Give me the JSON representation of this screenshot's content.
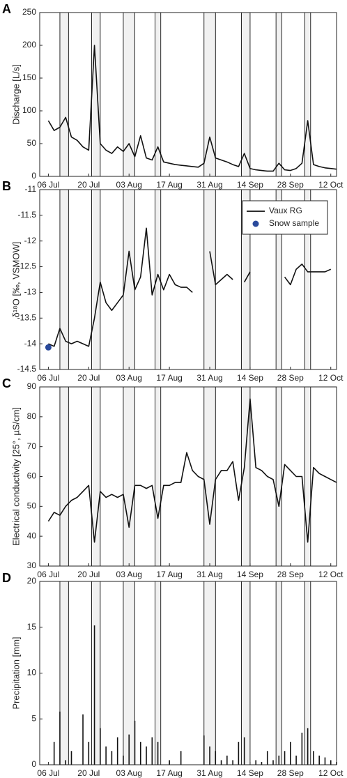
{
  "chart_data": [
    {
      "type": "line",
      "label": "A",
      "ylabel": "Discharge [L/s]",
      "x": [
        "06 Jul",
        "08 Jul",
        "10 Jul",
        "12 Jul",
        "14 Jul",
        "16 Jul",
        "18 Jul",
        "20 Jul",
        "22 Jul",
        "24 Jul",
        "26 Jul",
        "28 Jul",
        "30 Jul",
        "01 Aug",
        "03 Aug",
        "05 Aug",
        "07 Aug",
        "09 Aug",
        "11 Aug",
        "13 Aug",
        "15 Aug",
        "17 Aug",
        "19 Aug",
        "21 Aug",
        "23 Aug",
        "25 Aug",
        "27 Aug",
        "29 Aug",
        "31 Aug",
        "02 Sep",
        "04 Sep",
        "06 Sep",
        "08 Sep",
        "10 Sep",
        "12 Sep",
        "14 Sep",
        "16 Sep",
        "18 Sep",
        "20 Sep",
        "22 Sep",
        "24 Sep",
        "26 Sep",
        "28 Sep",
        "30 Sep",
        "02 Oct",
        "04 Oct",
        "06 Oct",
        "08 Oct",
        "10 Oct",
        "12 Oct",
        "14 Oct"
      ],
      "series": [
        {
          "color": "#111111",
          "values": [
            85,
            70,
            75,
            90,
            60,
            55,
            45,
            40,
            200,
            50,
            40,
            35,
            45,
            38,
            50,
            30,
            62,
            28,
            25,
            45,
            22,
            20,
            18,
            17,
            16,
            15,
            14,
            20,
            60,
            28,
            25,
            22,
            18,
            15,
            35,
            12,
            10,
            9,
            8,
            8,
            20,
            10,
            9,
            12,
            20,
            85,
            18,
            15,
            13,
            12,
            11
          ]
        }
      ],
      "xlim": [
        "03 Jul",
        "14 Oct"
      ],
      "xticks": [
        "06 Jul",
        "20 Jul",
        "03 Aug",
        "17 Aug",
        "31 Aug",
        "14 Sep",
        "28 Sep",
        "12 Oct"
      ],
      "ylim": [
        0,
        250
      ],
      "yticks": [
        0,
        50,
        100,
        150,
        200,
        250
      ],
      "periods": [
        [
          "10 Jul",
          "13 Jul"
        ],
        [
          "21 Jul",
          "24 Jul"
        ],
        [
          "01 Aug",
          "05 Aug"
        ],
        [
          "12 Aug",
          "14 Aug"
        ],
        [
          "29 Aug",
          "02 Sep"
        ],
        [
          "11 Sep",
          "14 Sep"
        ],
        [
          "23 Sep",
          "25 Sep"
        ],
        [
          "03 Oct",
          "05 Oct"
        ]
      ]
    },
    {
      "type": "line",
      "label": "B",
      "ylabel": "δ¹⁸O [‰, VSMOW]",
      "legend": "top-right",
      "x": [
        "06 Jul",
        "08 Jul",
        "10 Jul",
        "12 Jul",
        "14 Jul",
        "16 Jul",
        "18 Jul",
        "20 Jul",
        "22 Jul",
        "24 Jul",
        "26 Jul",
        "28 Jul",
        "30 Jul",
        "01 Aug",
        "03 Aug",
        "05 Aug",
        "07 Aug",
        "09 Aug",
        "11 Aug",
        "13 Aug",
        "15 Aug",
        "17 Aug",
        "19 Aug",
        "21 Aug",
        "23 Aug",
        "25 Aug",
        "27 Aug",
        "29 Aug",
        "31 Aug",
        "02 Sep",
        "04 Sep",
        "06 Sep",
        "08 Sep",
        "10 Sep",
        "12 Sep",
        "14 Sep",
        "16 Sep",
        "18 Sep",
        "20 Sep",
        "22 Sep",
        "24 Sep",
        "26 Sep",
        "28 Sep",
        "30 Sep",
        "02 Oct",
        "04 Oct",
        "06 Oct",
        "08 Oct",
        "10 Oct",
        "12 Oct",
        "14 Oct"
      ],
      "series": [
        {
          "name": "Vaux RG",
          "color": "#111111",
          "values": [
            -14.0,
            -14.05,
            -13.7,
            -13.95,
            -14.0,
            -13.95,
            -14.0,
            -14.05,
            -13.5,
            -12.8,
            -13.2,
            -13.35,
            -13.2,
            -13.05,
            -12.2,
            -12.95,
            -12.7,
            -11.75,
            -13.05,
            -12.65,
            -12.95,
            -12.65,
            -12.85,
            -12.9,
            -12.9,
            -13.0,
            null,
            null,
            -12.2,
            -12.85,
            -12.75,
            -12.65,
            -12.75,
            null,
            -12.8,
            -12.6,
            null,
            null,
            null,
            null,
            null,
            -12.7,
            -12.85,
            -12.55,
            -12.45,
            -12.6,
            -12.6,
            -12.6,
            -12.6,
            -12.55,
            null
          ]
        },
        {
          "name": "Snow sample",
          "type": "scatter",
          "color": "#2a4a9c",
          "x": [
            "06 Jul"
          ],
          "values": [
            -14.07
          ]
        }
      ],
      "xlim": [
        "03 Jul",
        "14 Oct"
      ],
      "xticks": [
        "06 Jul",
        "20 Jul",
        "03 Aug",
        "17 Aug",
        "31 Aug",
        "14 Sep",
        "28 Sep",
        "12 Oct"
      ],
      "ylim": [
        -14.5,
        -11
      ],
      "yticks": [
        -14.5,
        -14,
        -13.5,
        -13,
        -12.5,
        -12,
        -11.5,
        -11
      ],
      "periods": [
        [
          "10 Jul",
          "13 Jul"
        ],
        [
          "21 Jul",
          "24 Jul"
        ],
        [
          "01 Aug",
          "05 Aug"
        ],
        [
          "12 Aug",
          "14 Aug"
        ],
        [
          "29 Aug",
          "02 Sep"
        ],
        [
          "11 Sep",
          "14 Sep"
        ],
        [
          "23 Sep",
          "25 Sep"
        ],
        [
          "03 Oct",
          "05 Oct"
        ]
      ]
    },
    {
      "type": "line",
      "label": "C",
      "ylabel": "Electrical conductivity [25°, µS/cm]",
      "x": [
        "06 Jul",
        "08 Jul",
        "10 Jul",
        "12 Jul",
        "14 Jul",
        "16 Jul",
        "18 Jul",
        "20 Jul",
        "22 Jul",
        "24 Jul",
        "26 Jul",
        "28 Jul",
        "30 Jul",
        "01 Aug",
        "03 Aug",
        "05 Aug",
        "07 Aug",
        "09 Aug",
        "11 Aug",
        "13 Aug",
        "15 Aug",
        "17 Aug",
        "19 Aug",
        "21 Aug",
        "23 Aug",
        "25 Aug",
        "27 Aug",
        "29 Aug",
        "31 Aug",
        "02 Sep",
        "04 Sep",
        "06 Sep",
        "08 Sep",
        "10 Sep",
        "12 Sep",
        "14 Sep",
        "16 Sep",
        "18 Sep",
        "20 Sep",
        "22 Sep",
        "24 Sep",
        "26 Sep",
        "28 Sep",
        "30 Sep",
        "02 Oct",
        "04 Oct",
        "06 Oct",
        "08 Oct",
        "10 Oct",
        "12 Oct",
        "14 Oct"
      ],
      "series": [
        {
          "color": "#111111",
          "values": [
            45,
            48,
            47,
            50,
            52,
            53,
            55,
            57,
            38,
            55,
            53,
            54,
            53,
            54,
            43,
            57,
            57,
            56,
            57,
            46,
            57,
            57,
            58,
            58,
            68,
            62,
            60,
            59,
            44,
            59,
            62,
            62,
            65,
            52,
            63,
            86,
            63,
            62,
            60,
            59,
            50,
            64,
            62,
            60,
            60,
            38,
            63,
            61,
            60,
            59,
            58
          ]
        }
      ],
      "xlim": [
        "03 Jul",
        "14 Oct"
      ],
      "xticks": [
        "06 Jul",
        "20 Jul",
        "03 Aug",
        "17 Aug",
        "31 Aug",
        "14 Sep",
        "28 Sep",
        "12 Oct"
      ],
      "ylim": [
        30,
        90
      ],
      "yticks": [
        30,
        40,
        50,
        60,
        70,
        80,
        90
      ],
      "periods": [
        [
          "10 Jul",
          "13 Jul"
        ],
        [
          "21 Jul",
          "24 Jul"
        ],
        [
          "01 Aug",
          "05 Aug"
        ],
        [
          "12 Aug",
          "14 Aug"
        ],
        [
          "29 Aug",
          "02 Sep"
        ],
        [
          "11 Sep",
          "14 Sep"
        ],
        [
          "23 Sep",
          "25 Sep"
        ],
        [
          "03 Oct",
          "05 Oct"
        ]
      ]
    },
    {
      "type": "bar",
      "label": "D",
      "ylabel": "Precipitation [mm]",
      "x": [
        "06 Jul",
        "08 Jul",
        "10 Jul",
        "12 Jul",
        "14 Jul",
        "16 Jul",
        "18 Jul",
        "20 Jul",
        "22 Jul",
        "24 Jul",
        "26 Jul",
        "28 Jul",
        "30 Jul",
        "01 Aug",
        "03 Aug",
        "05 Aug",
        "07 Aug",
        "09 Aug",
        "11 Aug",
        "13 Aug",
        "15 Aug",
        "17 Aug",
        "19 Aug",
        "21 Aug",
        "23 Aug",
        "25 Aug",
        "27 Aug",
        "29 Aug",
        "31 Aug",
        "02 Sep",
        "04 Sep",
        "06 Sep",
        "08 Sep",
        "10 Sep",
        "12 Sep",
        "14 Sep",
        "16 Sep",
        "18 Sep",
        "20 Sep",
        "22 Sep",
        "24 Sep",
        "26 Sep",
        "28 Sep",
        "30 Sep",
        "02 Oct",
        "04 Oct",
        "06 Oct",
        "08 Oct",
        "10 Oct",
        "12 Oct",
        "14 Oct"
      ],
      "series": [
        {
          "color": "#111111",
          "values": [
            0,
            2.5,
            5.8,
            0.5,
            1.5,
            0,
            5.5,
            2.5,
            15.2,
            4,
            2,
            1.5,
            3,
            1,
            3.3,
            4.8,
            2.5,
            2,
            3,
            2.5,
            0,
            0.5,
            0,
            1.5,
            0,
            0,
            0,
            3.2,
            2,
            1.5,
            0.5,
            1,
            0.5,
            2.5,
            3,
            0,
            0.5,
            0.3,
            1.5,
            0.5,
            1,
            1.5,
            2.5,
            1,
            3.5,
            4,
            1.5,
            1,
            0.8,
            0.5,
            0.3
          ]
        }
      ],
      "xlim": [
        "03 Jul",
        "14 Oct"
      ],
      "xticks": [
        "06 Jul",
        "20 Jul",
        "03 Aug",
        "17 Aug",
        "31 Aug",
        "14 Sep",
        "28 Sep",
        "12 Oct"
      ],
      "ylim": [
        0,
        20
      ],
      "yticks": [
        0,
        5,
        10,
        15,
        20
      ],
      "periods": [
        [
          "10 Jul",
          "13 Jul"
        ],
        [
          "21 Jul",
          "24 Jul"
        ],
        [
          "01 Aug",
          "05 Aug"
        ],
        [
          "12 Aug",
          "14 Aug"
        ],
        [
          "29 Aug",
          "02 Sep"
        ],
        [
          "11 Sep",
          "14 Sep"
        ],
        [
          "23 Sep",
          "25 Sep"
        ],
        [
          "03 Oct",
          "05 Oct"
        ]
      ]
    }
  ]
}
